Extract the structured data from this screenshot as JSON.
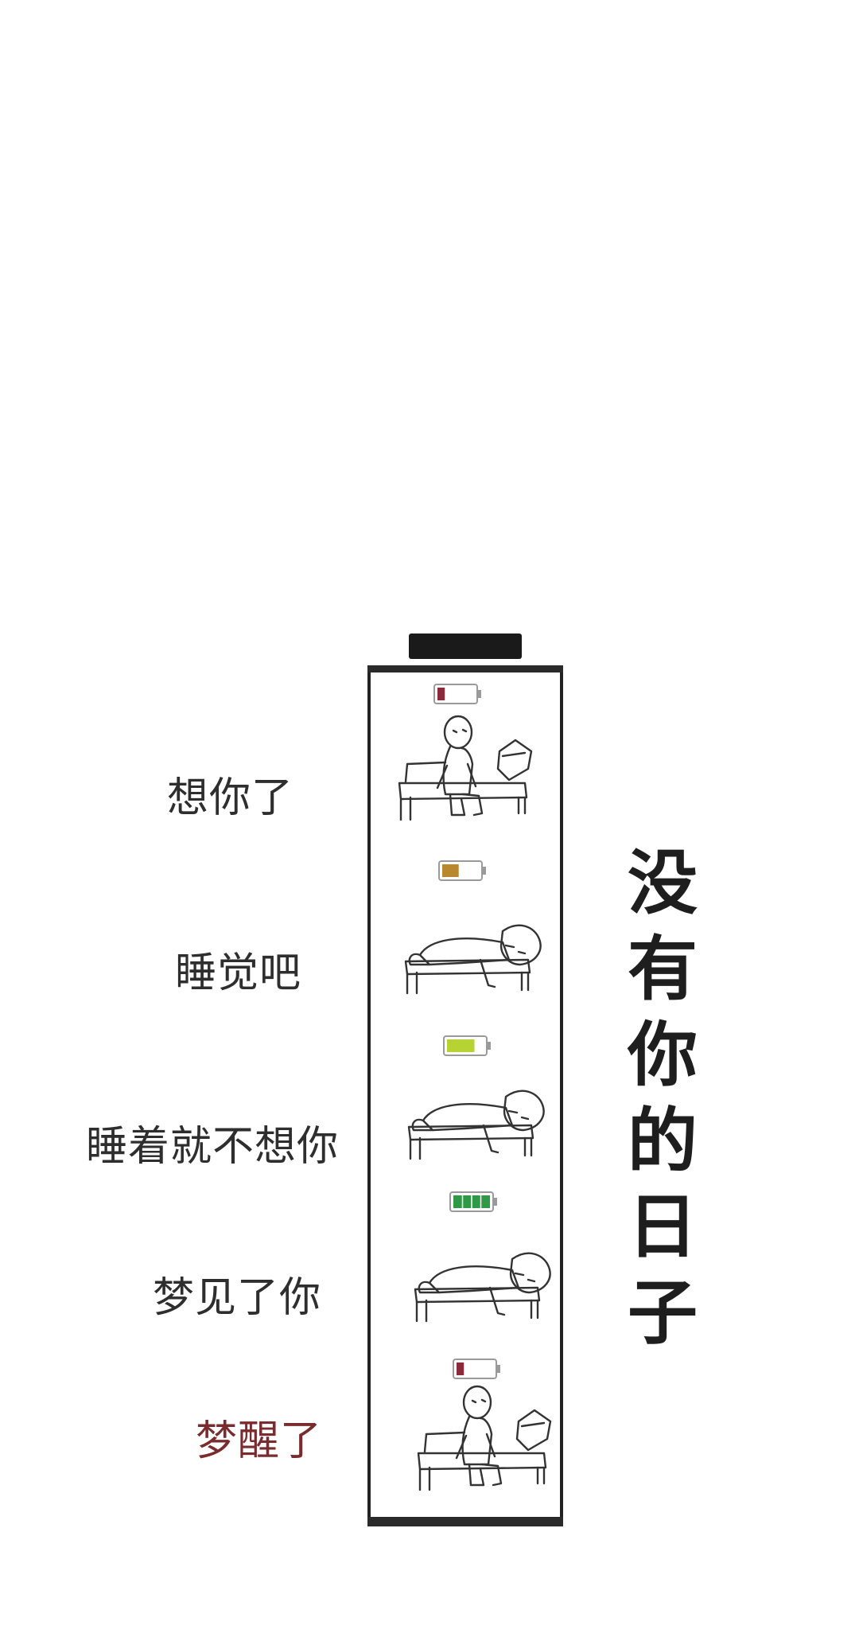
{
  "title": [
    "没",
    "有",
    "你",
    "的",
    "日",
    "子"
  ],
  "captions": [
    {
      "text": "想你了",
      "color": "#2e2e2e"
    },
    {
      "text": "睡觉吧",
      "color": "#2e2e2e"
    },
    {
      "text": "睡着就不想你",
      "color": "#2e2e2e"
    },
    {
      "text": "梦见了你",
      "color": "#2e2e2e"
    },
    {
      "text": "梦醒了",
      "color": "#7a2b2e"
    }
  ],
  "battery_levels": [
    {
      "level": 0.2,
      "color": "#8b2a3a"
    },
    {
      "level": 0.45,
      "color": "#b8872e"
    },
    {
      "level": 0.75,
      "color": "#b7d233"
    },
    {
      "level": 1.0,
      "color": "#2f9a46"
    },
    {
      "level": 0.2,
      "color": "#8b2a3a"
    }
  ],
  "scenes": [
    "sitting-on-bed",
    "lying-on-bed",
    "lying-on-bed",
    "lying-on-bed",
    "sitting-on-bed"
  ]
}
